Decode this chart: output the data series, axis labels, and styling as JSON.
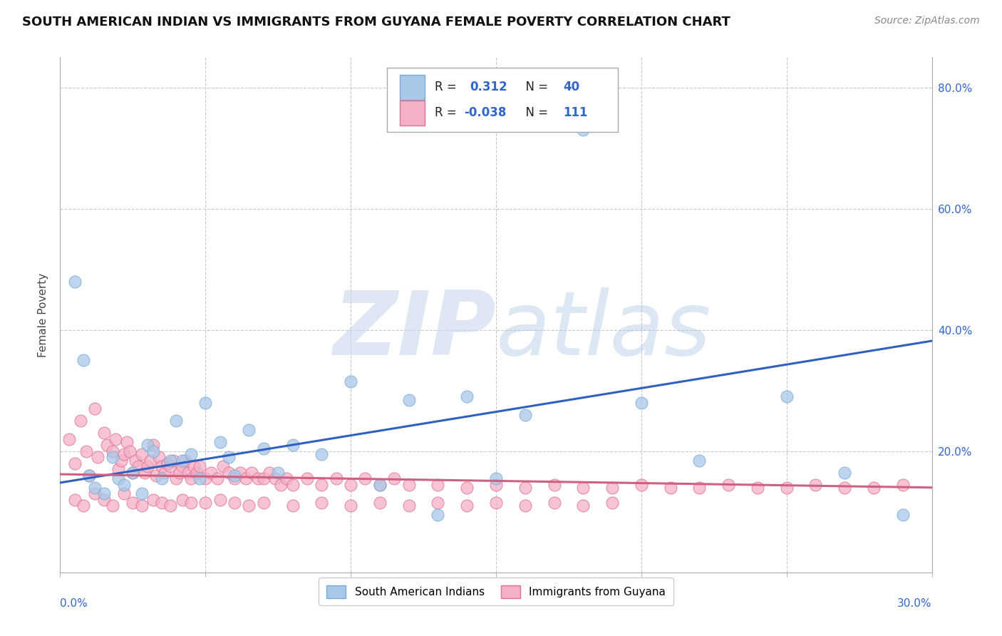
{
  "title": "SOUTH AMERICAN INDIAN VS IMMIGRANTS FROM GUYANA FEMALE POVERTY CORRELATION CHART",
  "source": "Source: ZipAtlas.com",
  "ylabel": "Female Poverty",
  "xmin": 0.0,
  "xmax": 0.3,
  "ymin": 0.0,
  "ymax": 0.85,
  "series1_name": "South American Indians",
  "series1_color": "#a8c8e8",
  "series1_edge": "#7aaad4",
  "series1_line_color": "#3060c0",
  "series2_name": "Immigrants from Guyana",
  "series2_color": "#f4b0c8",
  "series2_edge": "#e07090",
  "series2_line_color": "#d06080",
  "watermark_color": "#d0dff0",
  "background_color": "#ffffff",
  "grid_color": "#c8c8c8",
  "legend_R1": "0.312",
  "legend_N1": "40",
  "legend_R2": "-0.038",
  "legend_N2": "111",
  "blue_trend_y0": 0.148,
  "blue_trend_y1": 0.382,
  "pink_trend_y0": 0.162,
  "pink_trend_y1": 0.14,
  "s1_x": [
    0.005,
    0.008,
    0.01,
    0.012,
    0.015,
    0.018,
    0.02,
    0.022,
    0.025,
    0.028,
    0.03,
    0.032,
    0.035,
    0.038,
    0.04,
    0.042,
    0.045,
    0.048,
    0.05,
    0.055,
    0.058,
    0.06,
    0.065,
    0.07,
    0.075,
    0.08,
    0.09,
    0.1,
    0.11,
    0.12,
    0.13,
    0.14,
    0.15,
    0.16,
    0.18,
    0.2,
    0.22,
    0.25,
    0.27,
    0.29
  ],
  "s1_y": [
    0.48,
    0.35,
    0.16,
    0.14,
    0.13,
    0.19,
    0.155,
    0.145,
    0.165,
    0.13,
    0.21,
    0.2,
    0.155,
    0.185,
    0.25,
    0.185,
    0.195,
    0.155,
    0.28,
    0.215,
    0.19,
    0.16,
    0.235,
    0.205,
    0.165,
    0.21,
    0.195,
    0.315,
    0.145,
    0.285,
    0.095,
    0.29,
    0.155,
    0.26,
    0.73,
    0.28,
    0.185,
    0.29,
    0.165,
    0.095
  ],
  "s2_x": [
    0.003,
    0.005,
    0.007,
    0.009,
    0.01,
    0.012,
    0.013,
    0.015,
    0.016,
    0.018,
    0.019,
    0.02,
    0.021,
    0.022,
    0.023,
    0.024,
    0.025,
    0.026,
    0.027,
    0.028,
    0.029,
    0.03,
    0.031,
    0.032,
    0.033,
    0.034,
    0.035,
    0.036,
    0.037,
    0.038,
    0.039,
    0.04,
    0.041,
    0.042,
    0.043,
    0.044,
    0.045,
    0.046,
    0.047,
    0.048,
    0.05,
    0.052,
    0.054,
    0.056,
    0.058,
    0.06,
    0.062,
    0.064,
    0.066,
    0.068,
    0.07,
    0.072,
    0.074,
    0.076,
    0.078,
    0.08,
    0.085,
    0.09,
    0.095,
    0.1,
    0.105,
    0.11,
    0.115,
    0.12,
    0.13,
    0.14,
    0.15,
    0.16,
    0.17,
    0.18,
    0.19,
    0.2,
    0.21,
    0.22,
    0.23,
    0.24,
    0.25,
    0.26,
    0.27,
    0.28,
    0.29,
    0.005,
    0.008,
    0.012,
    0.015,
    0.018,
    0.022,
    0.025,
    0.028,
    0.032,
    0.035,
    0.038,
    0.042,
    0.045,
    0.05,
    0.055,
    0.06,
    0.065,
    0.07,
    0.08,
    0.09,
    0.1,
    0.11,
    0.12,
    0.13,
    0.14,
    0.15,
    0.16,
    0.17,
    0.18,
    0.19
  ],
  "s2_y": [
    0.22,
    0.18,
    0.25,
    0.2,
    0.16,
    0.27,
    0.19,
    0.23,
    0.21,
    0.2,
    0.22,
    0.17,
    0.185,
    0.195,
    0.215,
    0.2,
    0.165,
    0.185,
    0.175,
    0.195,
    0.165,
    0.175,
    0.185,
    0.21,
    0.16,
    0.19,
    0.175,
    0.165,
    0.18,
    0.175,
    0.185,
    0.155,
    0.165,
    0.175,
    0.185,
    0.165,
    0.155,
    0.175,
    0.165,
    0.175,
    0.155,
    0.165,
    0.155,
    0.175,
    0.165,
    0.155,
    0.165,
    0.155,
    0.165,
    0.155,
    0.155,
    0.165,
    0.155,
    0.145,
    0.155,
    0.145,
    0.155,
    0.145,
    0.155,
    0.145,
    0.155,
    0.145,
    0.155,
    0.145,
    0.145,
    0.14,
    0.145,
    0.14,
    0.145,
    0.14,
    0.14,
    0.145,
    0.14,
    0.14,
    0.145,
    0.14,
    0.14,
    0.145,
    0.14,
    0.14,
    0.145,
    0.12,
    0.11,
    0.13,
    0.12,
    0.11,
    0.13,
    0.115,
    0.11,
    0.12,
    0.115,
    0.11,
    0.12,
    0.115,
    0.115,
    0.12,
    0.115,
    0.11,
    0.115,
    0.11,
    0.115,
    0.11,
    0.115,
    0.11,
    0.115,
    0.11,
    0.115,
    0.11,
    0.115,
    0.11,
    0.115
  ]
}
